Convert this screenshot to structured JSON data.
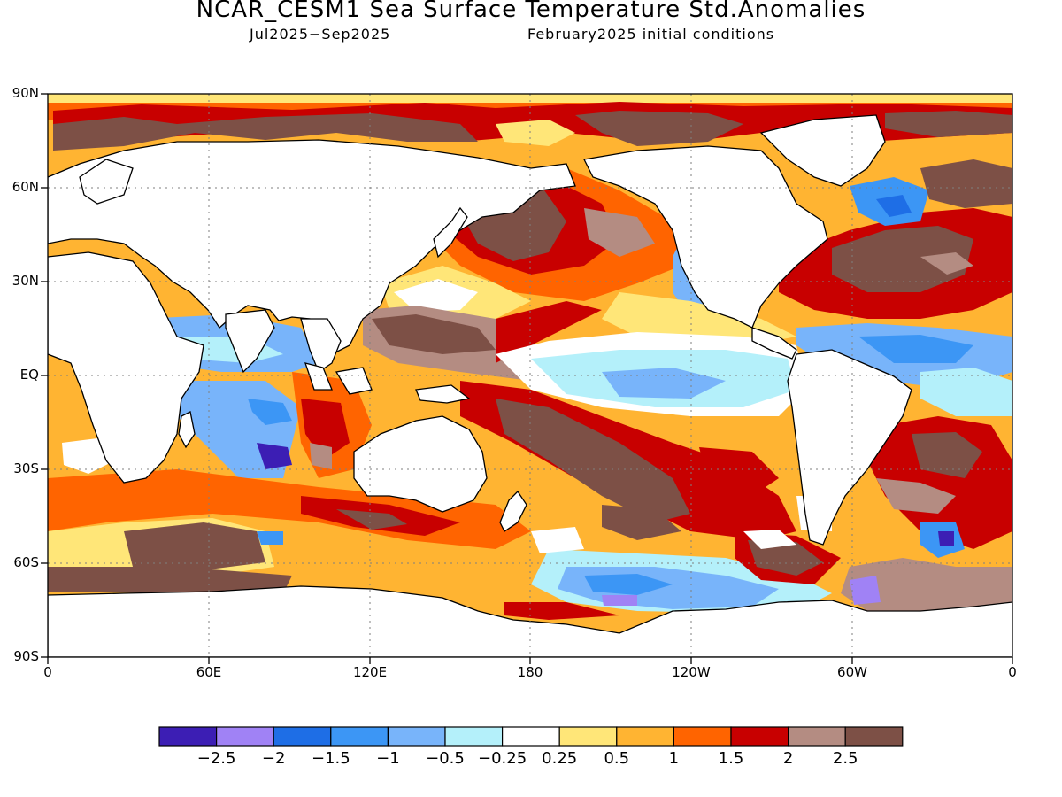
{
  "title": "NCAR_CESM1 Sea Surface Temperature Std.Anomalies",
  "period": "Jul2025−Sep2025",
  "init": "February2025 initial conditions",
  "lat_labels": [
    "90N",
    "60N",
    "30N",
    "EQ",
    "30S",
    "60S",
    "90S"
  ],
  "lon_labels": [
    "0",
    "60E",
    "120E",
    "180",
    "120W",
    "60W",
    "0"
  ],
  "colorbar": {
    "colors": [
      "#3c1eb4",
      "#a082f5",
      "#1e6ee6",
      "#3c96f5",
      "#78b4fa",
      "#b4f0fa",
      "#ffffff",
      "#ffe678",
      "#ffb432",
      "#ff6400",
      "#c80000",
      "#b48c82",
      "#7d5046"
    ],
    "labels": [
      "−2.5",
      "−2",
      "−1.5",
      "−1",
      "−0.5",
      "−0.25",
      "0.25",
      "0.5",
      "1",
      "1.5",
      "2",
      "2.5"
    ]
  }
}
